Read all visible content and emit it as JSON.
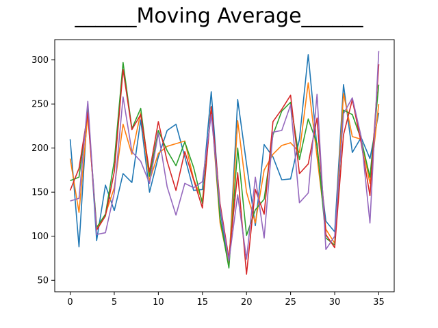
{
  "chart_data": {
    "type": "line",
    "title": "______Moving Average______",
    "xlabel": "",
    "ylabel": "",
    "xlim": [
      -1.75,
      36.75
    ],
    "ylim": [
      37,
      323
    ],
    "xticks": [
      0,
      5,
      10,
      15,
      20,
      25,
      30,
      35
    ],
    "yticks": [
      50,
      100,
      150,
      200,
      250,
      300
    ],
    "grid": false,
    "x": [
      0,
      1,
      2,
      3,
      4,
      5,
      6,
      7,
      8,
      9,
      10,
      11,
      12,
      13,
      14,
      15,
      16,
      17,
      18,
      19,
      20,
      21,
      22,
      23,
      24,
      25,
      26,
      27,
      28,
      29,
      30,
      31,
      32,
      33,
      34,
      35
    ],
    "series": [
      {
        "color": "#1f77b4",
        "values": [
          210,
          88,
          250,
          95,
          158,
          129,
          171,
          161,
          232,
          150,
          190,
          220,
          227,
          190,
          152,
          153,
          264,
          130,
          65,
          255,
          182,
          112,
          204,
          190,
          164,
          165,
          210,
          306,
          200,
          117,
          105,
          272,
          195,
          212,
          188,
          240
        ]
      },
      {
        "color": "#ff7f0e",
        "values": [
          188,
          127,
          238,
          108,
          125,
          155,
          227,
          193,
          240,
          163,
          194,
          202,
          205,
          208,
          165,
          140,
          245,
          115,
          68,
          231,
          150,
          115,
          175,
          193,
          203,
          206,
          195,
          274,
          190,
          108,
          92,
          262,
          213,
          210,
          160,
          250
        ]
      },
      {
        "color": "#2ca02c",
        "values": [
          163,
          167,
          243,
          110,
          125,
          185,
          297,
          222,
          245,
          168,
          220,
          197,
          180,
          207,
          178,
          137,
          247,
          120,
          64,
          200,
          101,
          130,
          142,
          215,
          242,
          252,
          187,
          233,
          205,
          98,
          90,
          243,
          238,
          210,
          167,
          272
        ]
      },
      {
        "color": "#d62728",
        "values": [
          152,
          177,
          240,
          107,
          123,
          173,
          289,
          221,
          238,
          173,
          230,
          185,
          152,
          196,
          164,
          132,
          247,
          137,
          75,
          172,
          57,
          153,
          125,
          230,
          244,
          260,
          171,
          182,
          234,
          102,
          87,
          215,
          255,
          206,
          146,
          295
        ]
      },
      {
        "color": "#9467bd",
        "values": [
          140,
          143,
          253,
          102,
          104,
          149,
          258,
          196,
          185,
          160,
          217,
          156,
          124,
          160,
          155,
          162,
          238,
          133,
          72,
          147,
          74,
          167,
          98,
          218,
          220,
          249,
          138,
          149,
          261,
          85,
          100,
          239,
          257,
          213,
          115,
          310
        ]
      }
    ]
  }
}
